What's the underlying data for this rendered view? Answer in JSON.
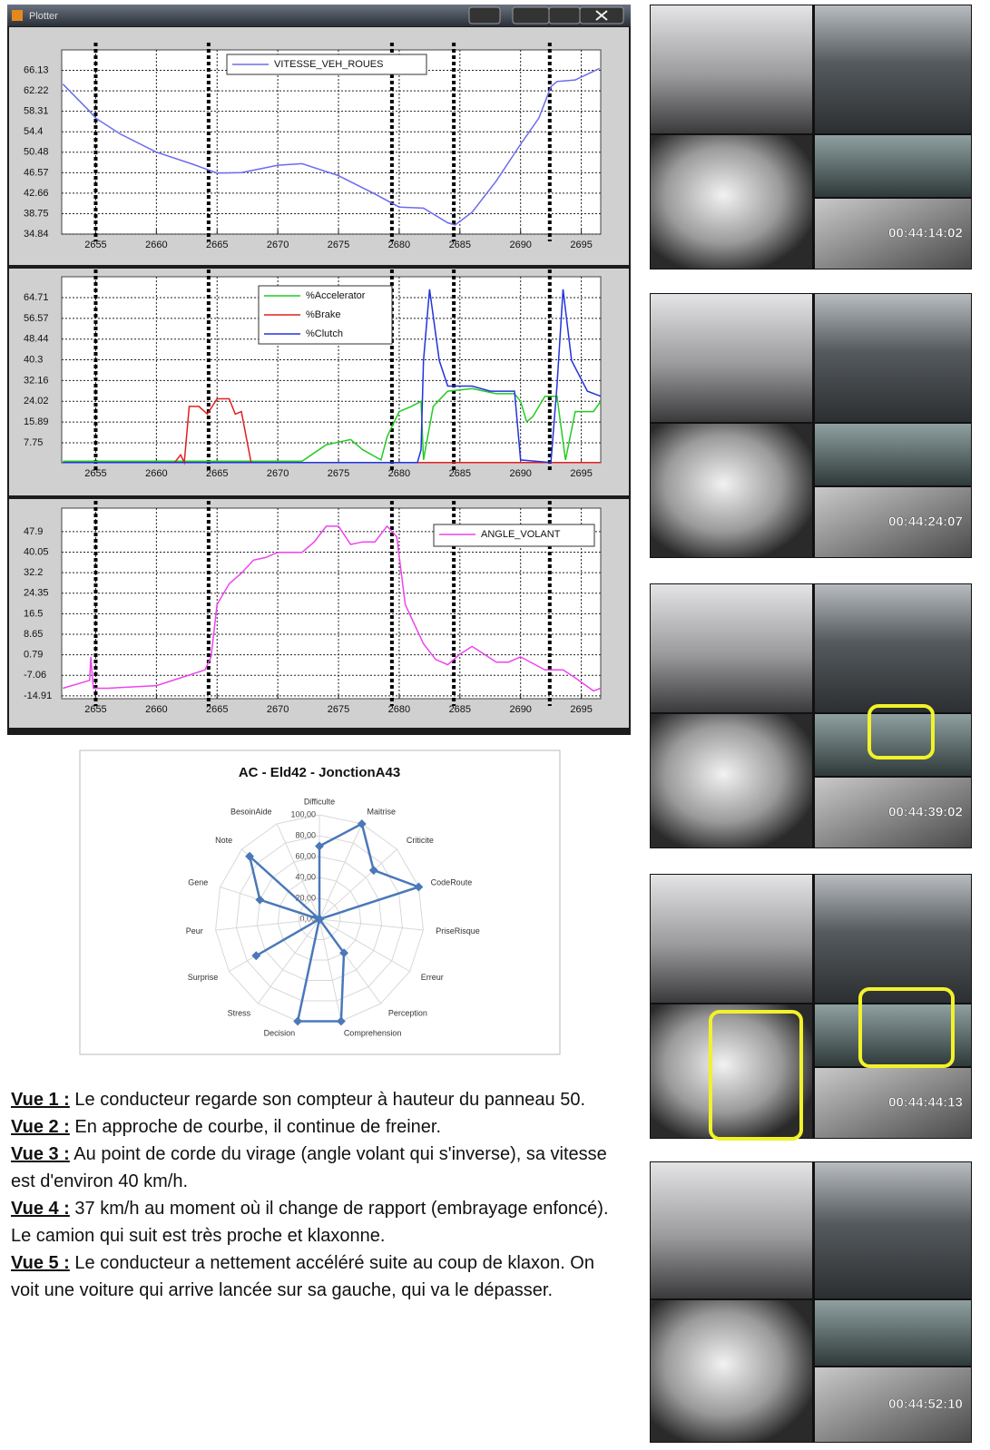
{
  "window": {
    "title": "Plotter"
  },
  "chart_data": [
    {
      "type": "line",
      "xlim": [
        2652.2,
        2696.6
      ],
      "ylim": [
        34.84,
        70.04
      ],
      "xticks": [
        2655,
        2660,
        2665,
        2670,
        2675,
        2680,
        2685,
        2690,
        2695
      ],
      "yticks": [
        66.13,
        62.22,
        58.31,
        54.4,
        50.48,
        46.57,
        42.66,
        38.75,
        34.84
      ],
      "grid": true,
      "vlines": [
        2655,
        2664.3,
        2679.4,
        2684.5,
        2692.4
      ],
      "series": [
        {
          "name": "VITESSE_VEH_ROUES",
          "color": "#6b6bf0",
          "x": [
            2652.3,
            2654.5,
            2655,
            2657,
            2660,
            2663,
            2665,
            2667,
            2670,
            2672,
            2675,
            2678,
            2680,
            2682,
            2684,
            2684.6,
            2686,
            2688,
            2690,
            2691.5,
            2692.5,
            2693,
            2694.5,
            2696.5
          ],
          "values": [
            63.5,
            58.3,
            57,
            54,
            50.5,
            48.2,
            46.5,
            46.6,
            48,
            48.3,
            46,
            42.5,
            40,
            39.8,
            37,
            36.6,
            39,
            45,
            52,
            57,
            63,
            64,
            64.3,
            66.5
          ]
        }
      ]
    },
    {
      "type": "line",
      "xlim": [
        2652.2,
        2696.6
      ],
      "ylim": [
        -0.1,
        72.9
      ],
      "xticks": [
        2655,
        2660,
        2665,
        2670,
        2675,
        2680,
        2685,
        2690,
        2695
      ],
      "yticks": [
        64.71,
        56.57,
        48.44,
        40.3,
        32.16,
        24.02,
        15.89,
        7.75
      ],
      "grid": true,
      "vlines": [
        2655,
        2664.3,
        2679.4,
        2684.5,
        2692.4
      ],
      "series": [
        {
          "name": "%Accelerator",
          "color": "#22cc22",
          "x": [
            2652.3,
            2672,
            2674,
            2676,
            2677,
            2678.5,
            2679,
            2680,
            2681,
            2681.8,
            2682,
            2682.8,
            2684,
            2686,
            2688,
            2689.5,
            2690,
            2690.5,
            2691,
            2692,
            2693,
            2693.3,
            2693.7,
            2694.5,
            2696,
            2696.6
          ],
          "values": [
            0.5,
            0.5,
            7,
            9,
            5,
            1,
            10,
            20,
            22,
            24,
            1,
            22,
            28,
            29,
            27,
            27,
            24,
            16,
            18,
            26,
            26,
            15,
            1,
            20,
            20,
            24
          ]
        },
        {
          "name": "%Brake",
          "color": "#e02020",
          "x": [
            2652.3,
            2661.5,
            2662,
            2662.3,
            2662.7,
            2663.5,
            2664.2,
            2665,
            2666,
            2666.5,
            2667,
            2667.8,
            2696.6
          ],
          "values": [
            0,
            0,
            3,
            0,
            22,
            22,
            19,
            25,
            25,
            19,
            20,
            0,
            0
          ]
        },
        {
          "name": "%Clutch",
          "color": "#2233dd",
          "x": [
            2652.3,
            2681.5,
            2681.8,
            2682,
            2682.5,
            2683.3,
            2684,
            2686,
            2687.5,
            2689.5,
            2690,
            2692.5,
            2693,
            2693.5,
            2694.2,
            2695.5,
            2696.6
          ],
          "values": [
            0,
            0,
            5,
            40,
            68,
            40,
            30,
            30,
            28,
            28,
            1,
            0,
            30,
            68,
            40,
            28,
            26
          ]
        }
      ]
    },
    {
      "type": "line",
      "xlim": [
        2652.2,
        2696.6
      ],
      "ylim": [
        -16,
        56.9
      ],
      "xticks": [
        2655,
        2660,
        2665,
        2670,
        2675,
        2680,
        2685,
        2690,
        2695
      ],
      "yticks": [
        47.9,
        40.05,
        32.2,
        24.35,
        16.5,
        8.65,
        0.79,
        -7.06,
        -14.91
      ],
      "grid": true,
      "vlines": [
        2655,
        2664.3,
        2679.4,
        2684.5,
        2692.4
      ],
      "series": [
        {
          "name": "ANGLE_VOLANT",
          "color": "#ee44ee",
          "x": [
            2652.3,
            2654.5,
            2654.6,
            2654.8,
            2656,
            2660,
            2662,
            2664,
            2664.5,
            2665,
            2666,
            2667,
            2668,
            2669,
            2670,
            2672,
            2673,
            2674,
            2675,
            2676,
            2677,
            2678,
            2679,
            2679.8,
            2680.5,
            2682,
            2683,
            2684,
            2685,
            2686,
            2687,
            2688,
            2689,
            2690,
            2692,
            2693.5,
            2694.5,
            2696,
            2696.6
          ],
          "values": [
            -12,
            -9,
            0,
            -12,
            -12,
            -11,
            -8,
            -5,
            0,
            20,
            28,
            32,
            37,
            38,
            40,
            40,
            44,
            50,
            50,
            43,
            44,
            44,
            50,
            46,
            20,
            5,
            -1,
            -3,
            1,
            4,
            1,
            -2,
            -2,
            0,
            -5,
            -5,
            -8,
            -13,
            -12
          ]
        }
      ]
    },
    {
      "type": "radar",
      "title": "AC - Eld42 - JonctionA43",
      "color": "#4a78b8",
      "categories": [
        "Difficulte",
        "Maitrise",
        "Criticite",
        "CodeRoute",
        "PriseRisque",
        "Erreur",
        "Perception",
        "Comprehension",
        "Decision",
        "Stress",
        "Surprise",
        "Peur",
        "Gene",
        "Note",
        "BesoinAide"
      ],
      "values": [
        70,
        100,
        70,
        100,
        0,
        0,
        40,
        100,
        100,
        0,
        70,
        0,
        60,
        90,
        0
      ],
      "rlim": [
        0,
        100
      ],
      "rticks": [
        {
          "value": 0,
          "label": "0,00"
        },
        {
          "value": 20,
          "label": "20,00"
        },
        {
          "value": 40,
          "label": "40,00"
        },
        {
          "value": 60,
          "label": "60,00"
        },
        {
          "value": 80,
          "label": "80,00"
        },
        {
          "value": 100,
          "label": "100,00"
        }
      ]
    }
  ],
  "video_frames": [
    {
      "timestamp": "00:44:14:02"
    },
    {
      "timestamp": "00:44:24:07"
    },
    {
      "timestamp": "00:44:39:02"
    },
    {
      "timestamp": "00:44:44:13"
    },
    {
      "timestamp": "00:44:52:10"
    }
  ],
  "notes": [
    {
      "label": "Vue 1 :",
      "text": " Le conducteur regarde son compteur à hauteur du panneau 50."
    },
    {
      "label": "Vue 2 :",
      "text": " En approche de courbe, il continue de freiner."
    },
    {
      "label": "Vue 3 :",
      "text": " Au point de corde du virage (angle volant qui s'inverse), sa vitesse est d'environ 40 km/h."
    },
    {
      "label": "Vue 4 :",
      "text": " 37 km/h au moment où il change de rapport (embrayage enfoncé). Le camion qui suit est très proche et klaxonne."
    },
    {
      "label": "Vue 5 :",
      "text": " Le conducteur a nettement accéléré suite au coup de klaxon. On voit une voiture qui arrive lancée sur sa gauche, qui va le dépasser."
    }
  ]
}
